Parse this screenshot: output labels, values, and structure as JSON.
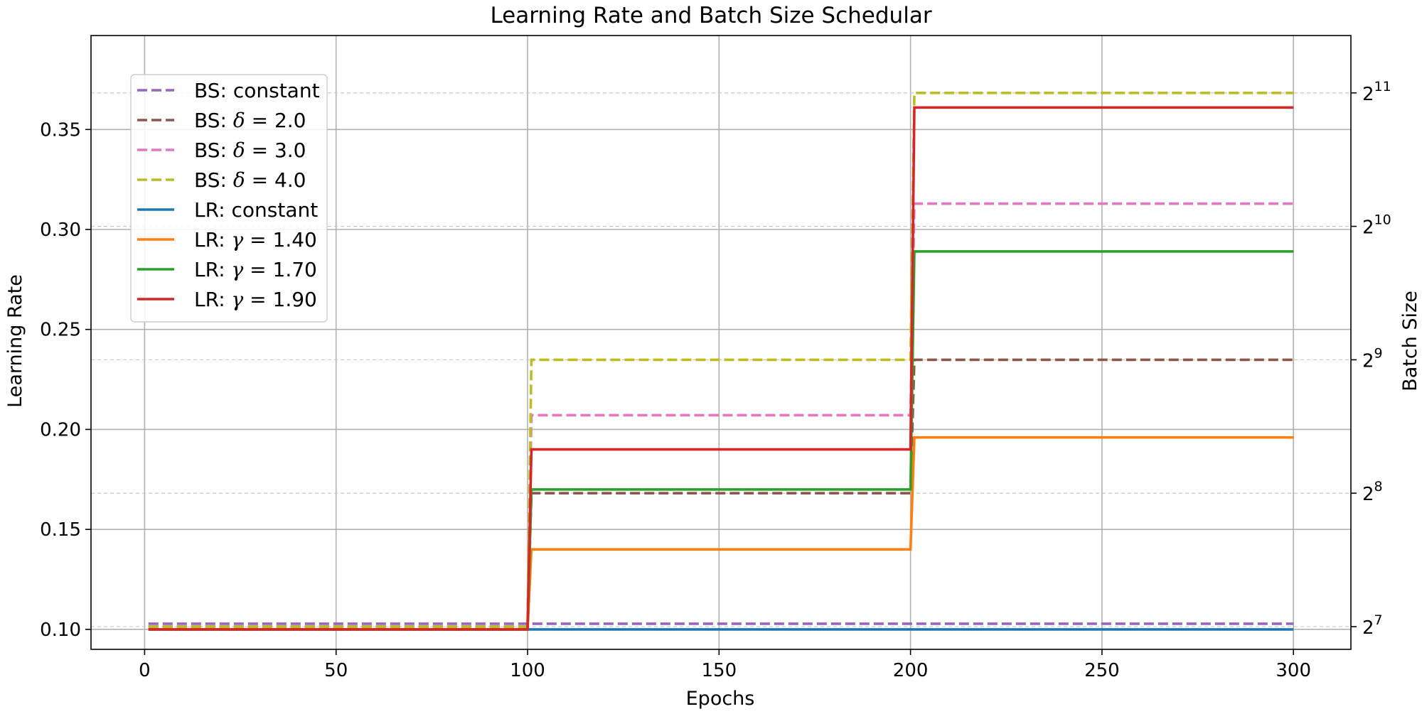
{
  "chart_data": {
    "type": "line",
    "title": "Learning Rate and Batch Size Schedular",
    "xlabel": "Epochs",
    "ylabel": "Learning Rate",
    "y2label": "Batch Size",
    "xlim": [
      -14,
      315
    ],
    "ylim": [
      0.09,
      0.397
    ],
    "y2scale": "log2",
    "y2lim_exponent": [
      6.83,
      11.43
    ],
    "grid": true,
    "legend_position": "upper-left",
    "x_ticks": [
      "0",
      "50",
      "100",
      "150",
      "200",
      "250",
      "300"
    ],
    "x_tick_values": [
      0,
      50,
      100,
      150,
      200,
      250,
      300
    ],
    "y_ticks": [
      "0.10",
      "0.15",
      "0.20",
      "0.25",
      "0.30",
      "0.35"
    ],
    "y_tick_values": [
      0.1,
      0.15,
      0.2,
      0.25,
      0.3,
      0.35
    ],
    "y2_ticks": [
      {
        "base": "2",
        "exp": "7",
        "value": 128
      },
      {
        "base": "2",
        "exp": "8",
        "value": 256
      },
      {
        "base": "2",
        "exp": "9",
        "value": 512
      },
      {
        "base": "2",
        "exp": "10",
        "value": 1024
      },
      {
        "base": "2",
        "exp": "11",
        "value": 2048
      }
    ],
    "series": [
      {
        "name": "BS: constant",
        "legend_prefix": "BS: ",
        "legend_symbol": "",
        "legend_value": "constant",
        "axis": "right",
        "style": "dashed",
        "color": "#9467bd",
        "x": [
          1,
          300
        ],
        "values": [
          130,
          130
        ]
      },
      {
        "name": "BS: δ = 2.0",
        "legend_prefix": "BS: ",
        "legend_symbol": "δ",
        "legend_value": " = 2.0",
        "axis": "right",
        "style": "dashed",
        "color": "#8c564b",
        "x": [
          1,
          100,
          101,
          200,
          201,
          300
        ],
        "values": [
          128,
          128,
          256,
          256,
          512,
          512
        ]
      },
      {
        "name": "BS: δ = 3.0",
        "legend_prefix": "BS: ",
        "legend_symbol": "δ",
        "legend_value": " = 3.0",
        "axis": "right",
        "style": "dashed",
        "color": "#e377c2",
        "x": [
          1,
          100,
          101,
          200,
          201,
          300
        ],
        "values": [
          128,
          128,
          384,
          384,
          1152,
          1152
        ]
      },
      {
        "name": "BS: δ = 4.0",
        "legend_prefix": "BS: ",
        "legend_symbol": "δ",
        "legend_value": " = 4.0",
        "axis": "right",
        "style": "dashed",
        "color": "#bcbd22",
        "x": [
          1,
          100,
          101,
          200,
          201,
          300
        ],
        "values": [
          128,
          128,
          512,
          512,
          2048,
          2048
        ]
      },
      {
        "name": "LR: constant",
        "legend_prefix": "LR: ",
        "legend_symbol": "",
        "legend_value": "constant",
        "axis": "left",
        "style": "solid",
        "color": "#1f77b4",
        "x": [
          1,
          300
        ],
        "values": [
          0.1,
          0.1
        ]
      },
      {
        "name": "LR: γ = 1.40",
        "legend_prefix": "LR: ",
        "legend_symbol": "γ",
        "legend_value": " = 1.40",
        "axis": "left",
        "style": "solid",
        "color": "#ff7f0e",
        "x": [
          1,
          100,
          101,
          200,
          201,
          300
        ],
        "values": [
          0.1,
          0.1,
          0.14,
          0.14,
          0.196,
          0.196
        ]
      },
      {
        "name": "LR: γ = 1.70",
        "legend_prefix": "LR: ",
        "legend_symbol": "γ",
        "legend_value": " = 1.70",
        "axis": "left",
        "style": "solid",
        "color": "#2ca02c",
        "x": [
          1,
          100,
          101,
          200,
          201,
          300
        ],
        "values": [
          0.1,
          0.1,
          0.17,
          0.17,
          0.289,
          0.289
        ]
      },
      {
        "name": "LR: γ = 1.90",
        "legend_prefix": "LR: ",
        "legend_symbol": "γ",
        "legend_value": " = 1.90",
        "axis": "left",
        "style": "solid",
        "color": "#d62728",
        "x": [
          1,
          100,
          101,
          200,
          201,
          300
        ],
        "values": [
          0.1,
          0.1,
          0.19,
          0.19,
          0.361,
          0.361
        ]
      }
    ]
  }
}
